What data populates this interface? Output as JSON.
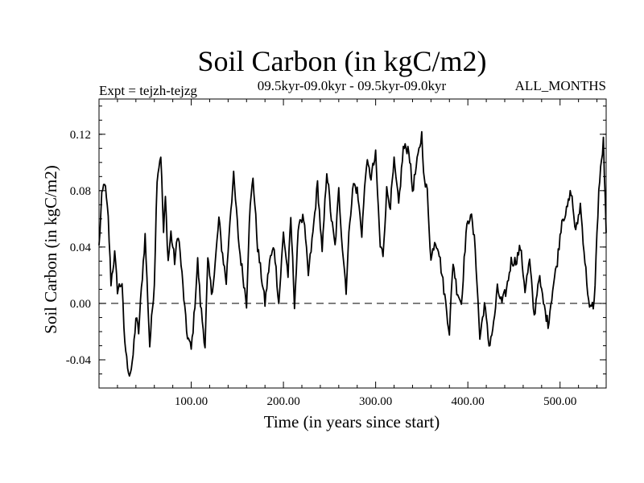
{
  "chart_data": {
    "type": "line",
    "title": "Soil Carbon (in kgC/m2)",
    "subtitle_left": "Expt = tejzh-tejzg",
    "subtitle_center": "09.5kyr-09.0kyr - 09.5kyr-09.0kyr",
    "subtitle_right": "ALL_MONTHS",
    "xlabel": "Time (in years since start)",
    "ylabel": "Soil Carbon (in kgC/m2)",
    "xlim": [
      0,
      550
    ],
    "ylim": [
      -0.06,
      0.145
    ],
    "x_ticks": [
      {
        "value": 100,
        "label": "100.00"
      },
      {
        "value": 200,
        "label": "200.00"
      },
      {
        "value": 300,
        "label": "300.00"
      },
      {
        "value": 400,
        "label": "400.00"
      },
      {
        "value": 500,
        "label": "500.00"
      }
    ],
    "y_ticks": [
      {
        "value": -0.04,
        "label": "-0.04"
      },
      {
        "value": 0.0,
        "label": "0.00"
      },
      {
        "value": 0.04,
        "label": "0.04"
      },
      {
        "value": 0.08,
        "label": "0.08"
      },
      {
        "value": 0.12,
        "label": "0.12"
      }
    ],
    "reference_line": {
      "y": 0.0,
      "style": "dashed"
    },
    "series": [
      {
        "name": "Soil Carbon",
        "x": [
          0,
          3,
          6,
          10,
          13,
          17,
          20,
          25,
          27,
          30,
          33,
          36,
          40,
          43,
          47,
          50,
          55,
          60,
          63,
          67,
          70,
          72,
          75,
          78,
          82,
          86,
          90,
          95,
          100,
          103,
          107,
          110,
          115,
          118,
          122,
          125,
          130,
          133,
          138,
          142,
          146,
          152,
          156,
          160,
          163,
          167,
          172,
          176,
          180,
          185,
          190,
          195,
          200,
          205,
          208,
          212,
          217,
          222,
          227,
          232,
          237,
          242,
          247,
          252,
          256,
          260,
          264,
          268,
          272,
          276,
          280,
          285,
          290,
          295,
          300,
          305,
          308,
          312,
          316,
          320,
          325,
          330,
          336,
          340,
          345,
          350,
          353,
          356,
          360,
          364,
          368,
          372,
          376,
          380,
          384,
          388,
          393,
          398,
          403,
          408,
          413,
          418,
          423,
          428,
          432,
          437,
          442,
          447,
          452,
          457,
          462,
          467,
          472,
          477,
          482,
          487,
          492,
          497,
          502,
          507,
          512,
          517,
          522,
          527,
          532,
          537,
          542,
          547,
          550
        ],
        "values": [
          0.04,
          0.075,
          0.087,
          0.06,
          0.015,
          0.035,
          0.01,
          0.015,
          -0.02,
          -0.04,
          -0.05,
          -0.045,
          -0.01,
          -0.02,
          0.02,
          0.048,
          -0.03,
          0.015,
          0.09,
          0.106,
          0.05,
          0.075,
          0.03,
          0.05,
          0.03,
          0.05,
          0.02,
          -0.02,
          -0.033,
          -0.01,
          0.03,
          0.0,
          -0.03,
          0.03,
          0.008,
          0.02,
          0.06,
          0.04,
          0.015,
          0.06,
          0.09,
          0.04,
          0.02,
          0.0,
          0.06,
          0.09,
          0.04,
          0.02,
          0.0,
          0.03,
          0.04,
          0.0,
          0.05,
          0.02,
          0.06,
          0.0,
          0.06,
          0.06,
          0.02,
          0.05,
          0.085,
          0.035,
          0.095,
          0.06,
          0.04,
          0.08,
          0.04,
          0.01,
          0.06,
          0.085,
          0.08,
          0.05,
          0.1,
          0.09,
          0.105,
          0.04,
          0.035,
          0.08,
          0.07,
          0.1,
          0.07,
          0.11,
          0.11,
          0.08,
          0.1,
          0.12,
          0.085,
          0.08,
          0.03,
          0.045,
          0.04,
          0.02,
          0.0,
          -0.02,
          0.03,
          0.01,
          0.0,
          0.05,
          0.065,
          0.04,
          -0.025,
          0.0,
          -0.03,
          -0.015,
          0.01,
          0.0,
          0.01,
          0.03,
          0.03,
          0.04,
          0.01,
          0.03,
          -0.01,
          0.02,
          0.0,
          -0.015,
          0.01,
          0.03,
          0.06,
          0.065,
          0.08,
          0.05,
          0.07,
          0.03,
          -0.005,
          0.0,
          0.08,
          0.115,
          0.05
        ]
      }
    ]
  }
}
